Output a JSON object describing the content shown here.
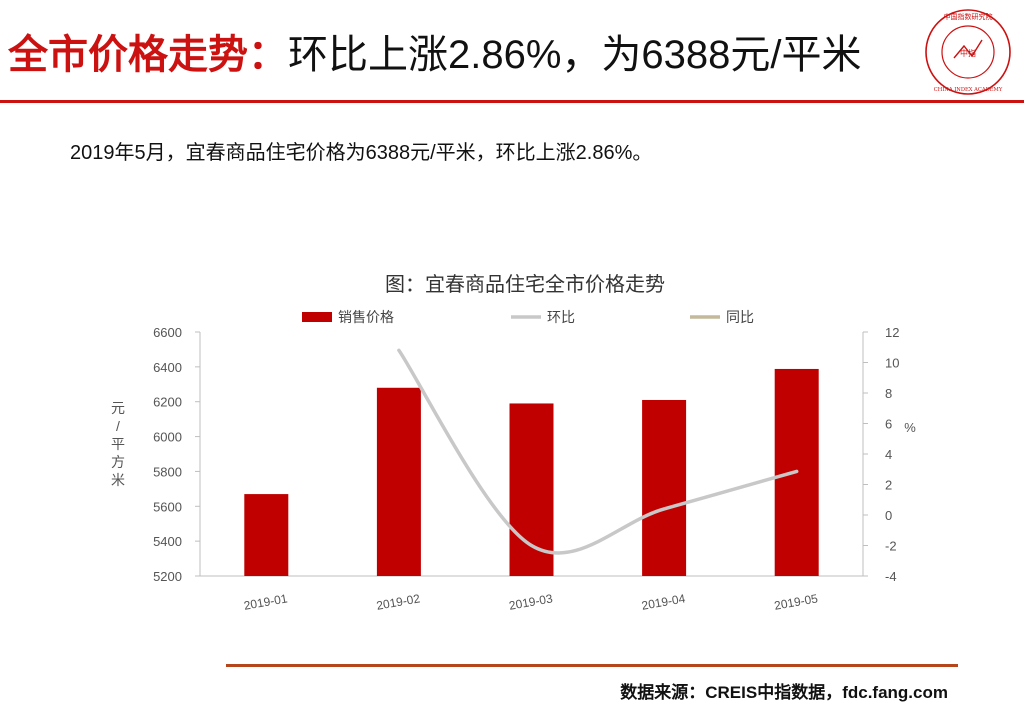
{
  "header": {
    "title_part1": "全市价格走势：",
    "title_part2": "环比上涨2.86%，为6388元/平米"
  },
  "logo": {
    "top_text": "中国指数研究院",
    "center_text": "中指",
    "bottom_text": "CHINA INDEX ACADEMY",
    "color": "#cc1111"
  },
  "subtitle": "2019年5月，宜春商品住宅价格为6388元/平米，环比上涨2.86%。",
  "chart_data": {
    "type": "bar+line",
    "title": "图：宜春商品住宅全市价格走势",
    "categories": [
      "2019-01",
      "2019-02",
      "2019-03",
      "2019-04",
      "2019-05"
    ],
    "series": [
      {
        "name": "销售价格",
        "kind": "bar",
        "axis": "left",
        "color": "#c00000",
        "values": [
          5670,
          6280,
          6190,
          6210,
          6388
        ]
      },
      {
        "name": "环比",
        "kind": "line",
        "axis": "right",
        "color": "#c8c8c8",
        "values": [
          null,
          10.8,
          -2.0,
          0.4,
          2.86
        ]
      },
      {
        "name": "同比",
        "kind": "line",
        "axis": "right",
        "color": "#c4b99a",
        "values": [
          null,
          null,
          null,
          null,
          null
        ]
      }
    ],
    "y_left": {
      "label": "元/平方米",
      "min": 5200,
      "max": 6600,
      "ticks": [
        5200,
        5400,
        5600,
        5800,
        6000,
        6200,
        6400,
        6600
      ]
    },
    "y_right": {
      "label": "%",
      "min": -4,
      "max": 12,
      "ticks": [
        -4,
        -2,
        0,
        2,
        4,
        6,
        8,
        10,
        12
      ]
    },
    "legend_position": "top",
    "grid": false
  },
  "footer": {
    "source": "数据来源：CREIS中指数据，fdc.fang.com"
  }
}
